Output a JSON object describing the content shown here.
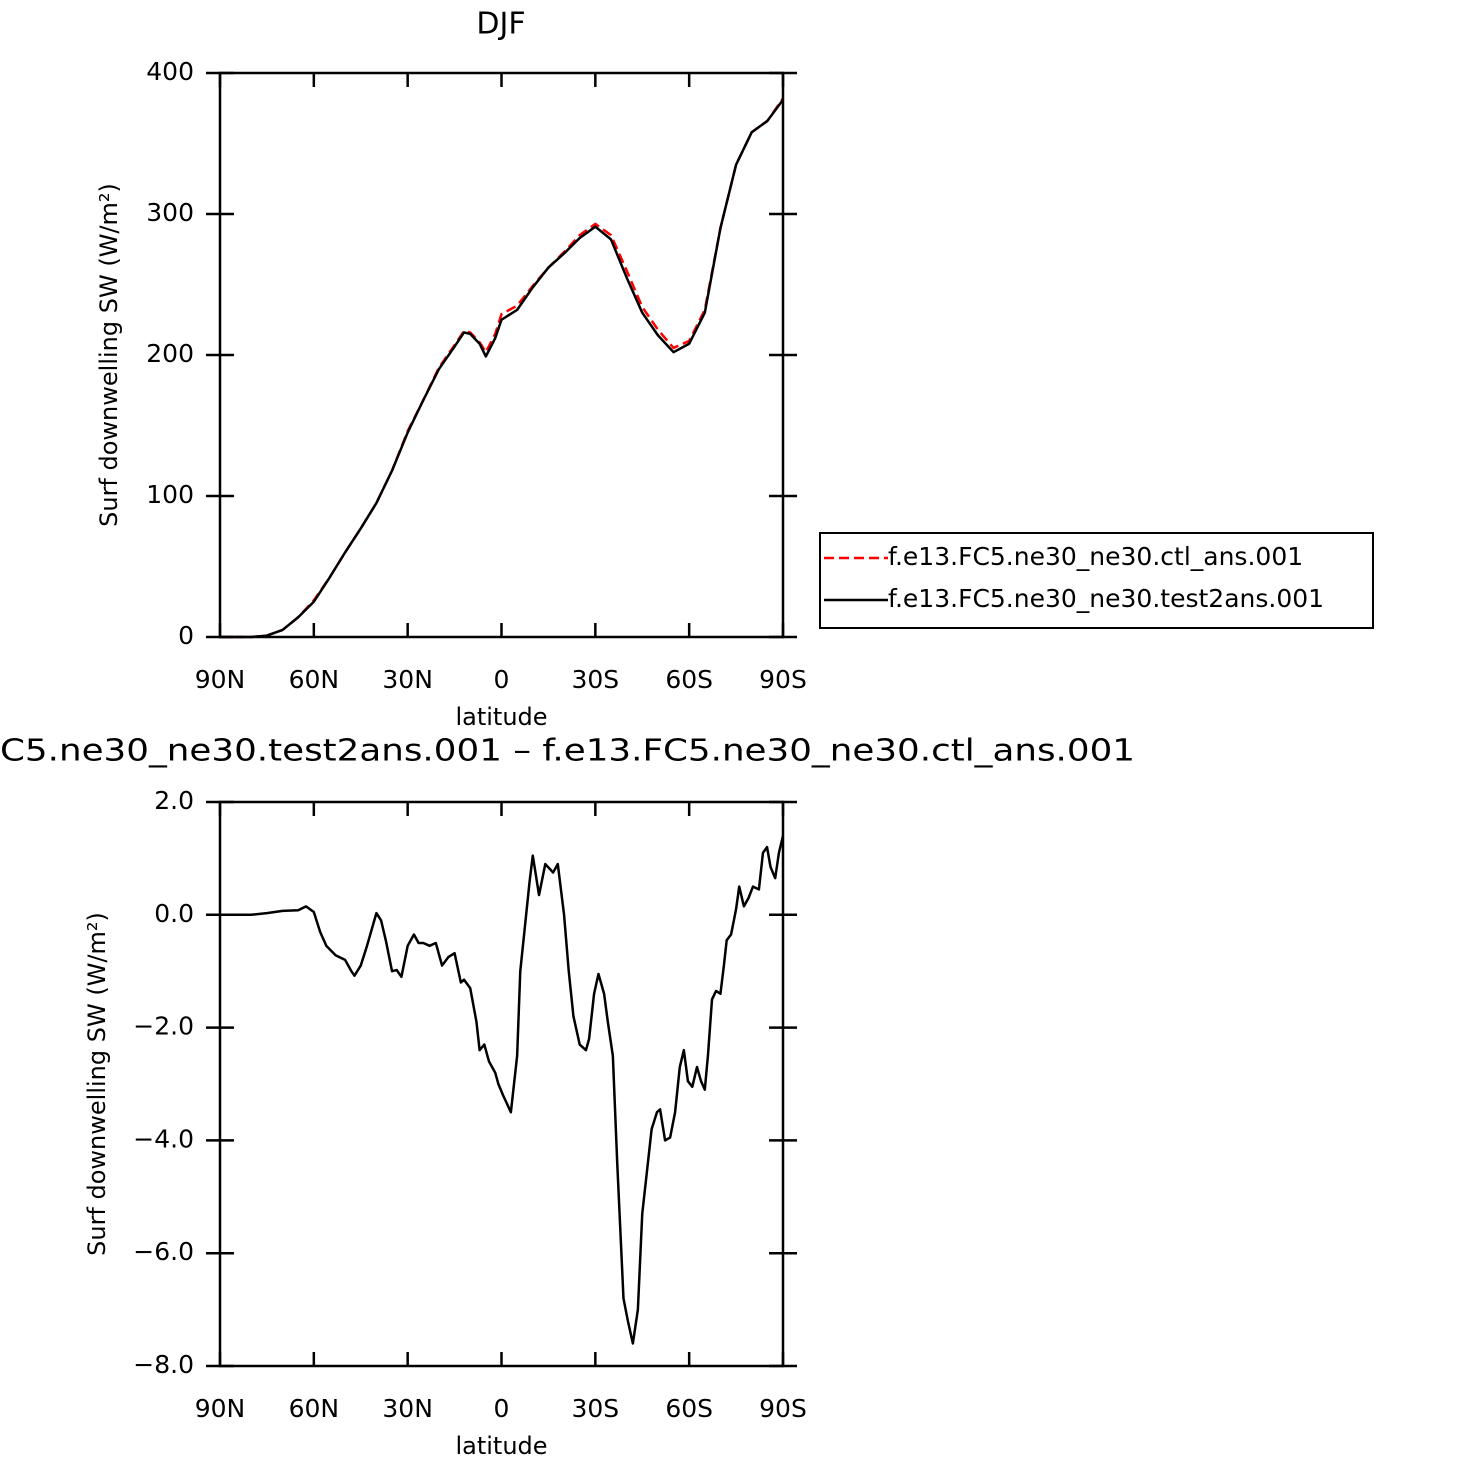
{
  "chart_data": [
    {
      "type": "line",
      "title": "DJF",
      "xlabel": "latitude",
      "ylabel": "Surf downwelling SW (W/m²)",
      "xlim": [
        90,
        -90
      ],
      "xticks": [
        {
          "value": 90,
          "label": "90N"
        },
        {
          "value": 60,
          "label": "60N"
        },
        {
          "value": 30,
          "label": "30N"
        },
        0,
        {
          "value": -30,
          "label": "30S"
        },
        {
          "value": -60,
          "label": "60S"
        },
        {
          "value": -90,
          "label": "90S"
        }
      ],
      "ylim": [
        0,
        400
      ],
      "yticks": [
        0,
        100,
        200,
        300,
        400
      ],
      "legend": "right",
      "x": [
        90,
        85,
        80,
        75,
        70,
        65,
        60,
        55,
        50,
        45,
        40,
        35,
        30,
        25,
        20,
        15,
        12,
        10,
        7,
        5,
        2,
        0,
        -5,
        -10,
        -15,
        -20,
        -25,
        -30,
        -35,
        -40,
        -45,
        -50,
        -55,
        -60,
        -65,
        -70,
        -75,
        -80,
        -85,
        -90
      ],
      "series": [
        {
          "name": "f.e13.FC5.ne30_ne30.ctl_ans.001",
          "color": "#ff0000",
          "linestyle": "dashed",
          "values": [
            0,
            0,
            0,
            1,
            5,
            14,
            26,
            42,
            60,
            77,
            95,
            118,
            146,
            168,
            191,
            207,
            217,
            216,
            209,
            202,
            215,
            229,
            235,
            249,
            262,
            273,
            285,
            293,
            285,
            260,
            234,
            218,
            205,
            210,
            232,
            290,
            335,
            358,
            366,
            382
          ]
        },
        {
          "name": "f.e13.FC5.ne30_ne30.test2ans.001",
          "color": "#000000",
          "linestyle": "solid",
          "values": [
            0,
            0,
            0,
            1,
            5,
            14,
            25,
            42,
            60,
            77,
            95,
            118,
            145,
            168,
            190,
            206,
            216,
            215,
            208,
            199,
            212,
            225,
            232,
            248,
            262,
            272,
            283,
            291,
            282,
            255,
            230,
            214,
            202,
            208,
            230,
            290,
            335,
            358,
            366,
            381
          ]
        }
      ]
    },
    {
      "type": "line",
      "title": "C5.ne30_ne30.test2ans.001 – f.e13.FC5.ne30_ne30.ctl_ans.001",
      "xlabel": "latitude",
      "ylabel": "Surf downwelling SW (W/m²)",
      "xlim": [
        90,
        -90
      ],
      "xticks": [
        {
          "value": 90,
          "label": "90N"
        },
        {
          "value": 60,
          "label": "60N"
        },
        {
          "value": 30,
          "label": "30N"
        },
        0,
        {
          "value": -30,
          "label": "30S"
        },
        {
          "value": -60,
          "label": "60S"
        },
        {
          "value": -90,
          "label": "90S"
        }
      ],
      "ylim": [
        -8,
        2
      ],
      "yticks": [
        {
          "value": -8,
          "label": "−8.0"
        },
        {
          "value": -6,
          "label": "−6.0"
        },
        {
          "value": -4,
          "label": "−4.0"
        },
        {
          "value": -2,
          "label": "−2.0"
        },
        {
          "value": 0,
          "label": "0.0"
        },
        {
          "value": 2,
          "label": "2.0"
        }
      ],
      "color": "#000000",
      "x": [
        90,
        85,
        80,
        75,
        70,
        65,
        62.5,
        60,
        58,
        56,
        53,
        50,
        48,
        47,
        45,
        43,
        40,
        38.5,
        37,
        35,
        33.5,
        32,
        30,
        28,
        26.5,
        25,
        23,
        21,
        19,
        17,
        15,
        13,
        12,
        10,
        8,
        7,
        5.5,
        4,
        2,
        1,
        -0.5,
        -3,
        -5,
        -6,
        -7.5,
        -9,
        -10,
        -12,
        -14,
        -16.5,
        -18,
        -20,
        -21.5,
        -23,
        -25,
        -27,
        -28,
        -29.6,
        -31,
        -32.8,
        -34,
        -35.6,
        -37,
        -39,
        -40.4,
        -42,
        -43.6,
        -45,
        -46.8,
        -48,
        -49.7,
        -50.7,
        -52.3,
        -53.9,
        -55.5,
        -57,
        -58.3,
        -59.6,
        -61,
        -62.5,
        -63.8,
        -65,
        -66,
        -67.3,
        -68.6,
        -70,
        -71.1,
        -72,
        -73.4,
        -75,
        -76,
        -77.5,
        -79,
        -80.4,
        -82.3,
        -83.6,
        -84.9,
        -86,
        -87.5,
        -88.7,
        -90
      ],
      "values": [
        0,
        0,
        0,
        0.03,
        0.07,
        0.08,
        0.15,
        0.05,
        -0.3,
        -0.55,
        -0.72,
        -0.8,
        -1.0,
        -1.08,
        -0.9,
        -0.55,
        0.03,
        -0.1,
        -0.45,
        -1.0,
        -0.98,
        -1.1,
        -0.55,
        -0.35,
        -0.5,
        -0.5,
        -0.55,
        -0.5,
        -0.9,
        -0.75,
        -0.68,
        -1.2,
        -1.15,
        -1.3,
        -1.9,
        -2.4,
        -2.3,
        -2.6,
        -2.8,
        -3.0,
        -3.2,
        -3.5,
        -2.5,
        -1.0,
        -0.2,
        0.6,
        1.05,
        0.35,
        0.9,
        0.75,
        0.9,
        0,
        -1.0,
        -1.8,
        -2.3,
        -2.4,
        -2.2,
        -1.4,
        -1.05,
        -1.4,
        -1.9,
        -2.5,
        -4.4,
        -6.8,
        -7.2,
        -7.6,
        -7.0,
        -5.3,
        -4.4,
        -3.8,
        -3.5,
        -3.45,
        -4.0,
        -3.95,
        -3.5,
        -2.7,
        -2.4,
        -2.95,
        -3.05,
        -2.7,
        -2.95,
        -3.1,
        -2.5,
        -1.5,
        -1.35,
        -1.4,
        -0.9,
        -0.45,
        -0.35,
        0.1,
        0.5,
        0.15,
        0.3,
        0.5,
        0.45,
        1.1,
        1.2,
        0.85,
        0.65,
        1.1,
        1.4
      ]
    }
  ]
}
